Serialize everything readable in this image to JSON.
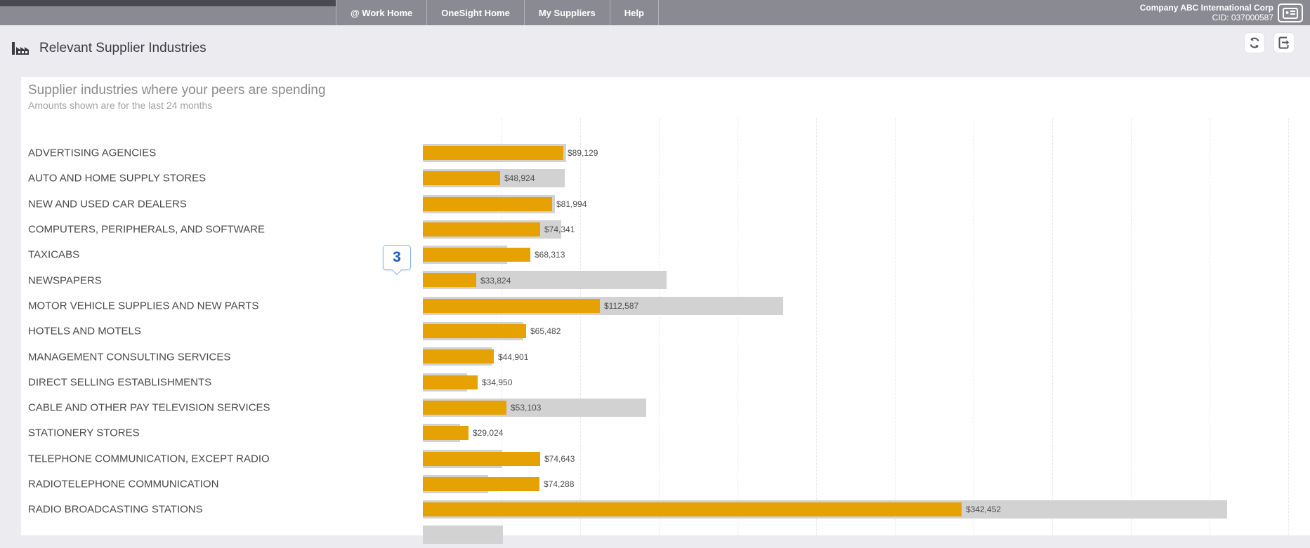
{
  "nav": {
    "items": [
      {
        "label": "@ Work Home"
      },
      {
        "label": "OneSight Home"
      },
      {
        "label": "My Suppliers"
      },
      {
        "label": "Help"
      }
    ],
    "company_name": "Company ABC International Corp",
    "company_cid": "CID: 037000587"
  },
  "header": {
    "title": "Relevant Supplier Industries",
    "icons": [
      "factory-icon",
      "refresh-icon",
      "export-icon",
      "id-card-icon"
    ]
  },
  "annotation": {
    "step_number": "3"
  },
  "colors": {
    "bar_orange": "#e6a203",
    "bar_gray": "#d2d2d2",
    "nav_gray": "#8a8a93",
    "badge_blue": "#1b58c2",
    "badge_border": "#8ab4e8"
  },
  "chart_data": {
    "type": "bar",
    "orientation": "horizontal",
    "title": "Supplier industries where your peers are spending",
    "subtitle": "Amounts shown are for the last 24 months",
    "xlim": [
      0,
      550000
    ],
    "gridline_interval": 50000,
    "grid": "vertical-dotted",
    "categories": [
      "ADVERTISING AGENCIES",
      "AUTO AND HOME SUPPLY STORES",
      "NEW AND USED CAR DEALERS",
      "COMPUTERS, PERIPHERALS, AND SOFTWARE",
      "TAXICABS",
      "NEWSPAPERS",
      "MOTOR VEHICLE SUPPLIES AND NEW PARTS",
      "HOTELS AND MOTELS",
      "MANAGEMENT CONSULTING SERVICES",
      "DIRECT SELLING ESTABLISHMENTS",
      "CABLE AND OTHER PAY TELEVISION SERVICES",
      "STATIONERY STORES",
      "TELEPHONE COMMUNICATION, EXCEPT RADIO",
      "RADIOTELEPHONE COMMUNICATION",
      "RADIO BROADCASTING STATIONS"
    ],
    "series": [
      {
        "name": "company-spend-orange",
        "values": [
          89129,
          48924,
          81994,
          74341,
          68313,
          33824,
          112587,
          65482,
          44901,
          34950,
          53103,
          29024,
          74643,
          74288,
          342452
        ]
      },
      {
        "name": "peer-benchmark-gray-estimated",
        "values": [
          91000,
          90000,
          84000,
          88000,
          53500,
          155000,
          229000,
          64000,
          44000,
          28000,
          142000,
          23500,
          50500,
          41500,
          511000
        ]
      }
    ],
    "value_labels": [
      "$89,129",
      "$48,924",
      "$81,994",
      "$74,341",
      "$68,313",
      "$33,824",
      "$112,587",
      "$65,482",
      "$44,901",
      "$34,950",
      "$53,103",
      "$29,024",
      "$74,643",
      "$74,288",
      "$342,452"
    ],
    "partial_row_at_bottom": {
      "peer_value_estimated": 51000,
      "label_visible": false
    }
  }
}
